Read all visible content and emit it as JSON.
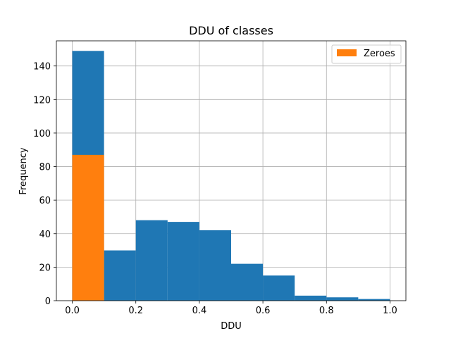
{
  "chart_data": {
    "type": "bar",
    "title": "DDU of classes",
    "xlabel": "DDU",
    "ylabel": "Frequency",
    "xlim": [
      -0.05,
      1.05
    ],
    "ylim": [
      0,
      155
    ],
    "grid": true,
    "legend_placement": "top-right",
    "x_ticks": [
      {
        "value": 0.0,
        "label": "0.0"
      },
      {
        "value": 0.2,
        "label": "0.2"
      },
      {
        "value": 0.4,
        "label": "0.4"
      },
      {
        "value": 0.6,
        "label": "0.6"
      },
      {
        "value": 0.8,
        "label": "0.8"
      },
      {
        "value": 1.0,
        "label": "1.0"
      }
    ],
    "y_ticks": [
      {
        "value": 0,
        "label": "0"
      },
      {
        "value": 20,
        "label": "20"
      },
      {
        "value": 40,
        "label": "40"
      },
      {
        "value": 60,
        "label": "60"
      },
      {
        "value": 80,
        "label": "80"
      },
      {
        "value": 100,
        "label": "100"
      },
      {
        "value": 120,
        "label": "120"
      },
      {
        "value": 140,
        "label": "140"
      }
    ],
    "bin_edges": [
      0.0,
      0.1,
      0.2,
      0.3,
      0.4,
      0.5,
      0.6,
      0.7,
      0.8,
      0.9,
      1.0
    ],
    "series": [
      {
        "color": "#1f77b4",
        "values": [
          149,
          30,
          48,
          47,
          42,
          22,
          15,
          3,
          2,
          1
        ]
      },
      {
        "name": "Zeroes",
        "color": "#ff7f0e",
        "values": [
          87,
          0,
          0,
          0,
          0,
          0,
          0,
          0,
          0,
          0
        ]
      }
    ]
  }
}
